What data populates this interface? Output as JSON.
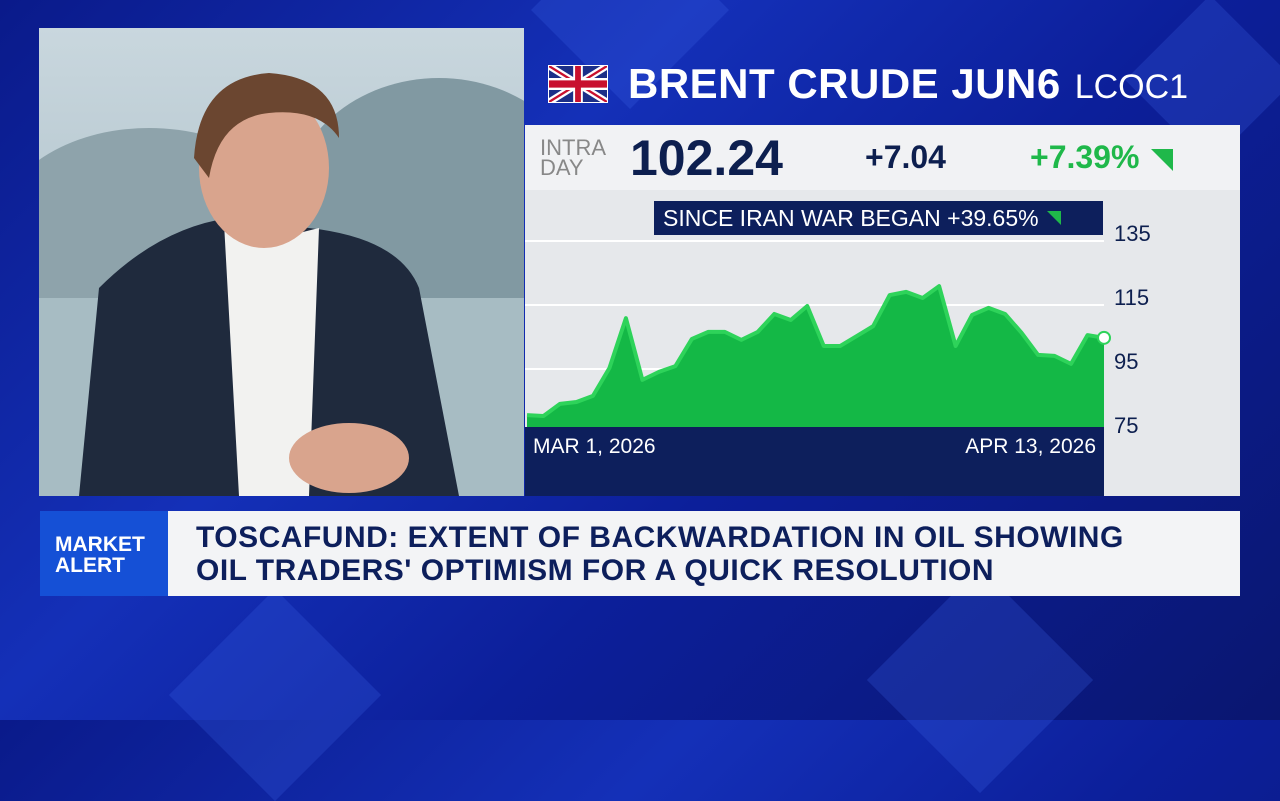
{
  "header": {
    "title": "BRENT CRUDE JUN6",
    "symbol": "LCOC1",
    "flag_icon": "uk-flag-icon"
  },
  "quote": {
    "label_line1": "INTRA",
    "label_line2": "DAY",
    "price": "102.24",
    "change": "+7.04",
    "change_pct": "+7.39%",
    "direction": "up"
  },
  "colors": {
    "up": "#1fb84a",
    "navy": "#0d1f5c",
    "alert_blue": "#1550d6"
  },
  "chart_data": {
    "type": "area",
    "annotation": "SINCE IRAN WAR BEGAN +39.65%",
    "x_start_label": "MAR 1, 2026",
    "x_end_label": "APR 13, 2026",
    "yticks": [
      135,
      115,
      95,
      75
    ],
    "ylim": [
      75,
      135
    ],
    "y_axis_position": "right",
    "grid": true,
    "values": [
      78.1,
      77.8,
      81.6,
      82.2,
      84.1,
      92.8,
      108.4,
      89.1,
      91.6,
      93.4,
      101.9,
      104.1,
      104.1,
      101.6,
      104.1,
      109.7,
      107.8,
      112.2,
      99.7,
      99.7,
      102.8,
      105.9,
      115.6,
      116.6,
      114.7,
      118.4,
      99.7,
      109.4,
      111.6,
      109.7,
      103.8,
      96.9,
      96.6,
      94.1,
      103.1,
      102.24
    ]
  },
  "ticker": {
    "label_line1": "MARKET",
    "label_line2": "ALERT",
    "headline_line1": "TOSCAFUND: EXTENT OF BACKWARDATION IN OIL SHOWING",
    "headline_line2": "OIL TRADERS' OPTIMISM FOR A QUICK RESOLUTION"
  }
}
